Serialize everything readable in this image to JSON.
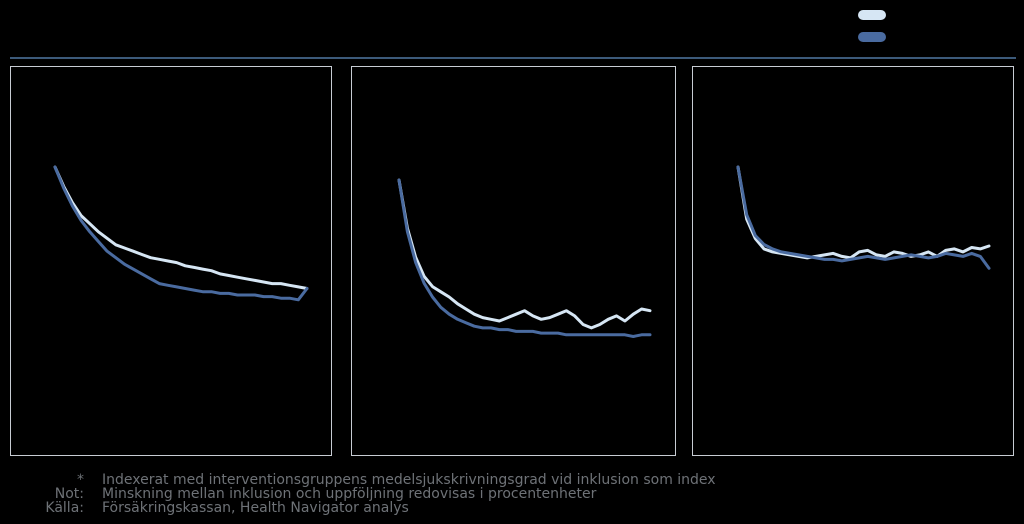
{
  "colors": {
    "background": "#000000",
    "frame": "#c7ccd3",
    "rule": "#3c5a7a",
    "footnote_text": "#6e7277"
  },
  "legend": {
    "entries": [
      {
        "label": "",
        "color": "#d6e6f4"
      },
      {
        "label": "",
        "color": "#4a6ba0"
      }
    ]
  },
  "chart_data": [
    {
      "type": "line",
      "title": "",
      "xlabel": "",
      "ylabel": "",
      "grid": false,
      "ylim": [
        0,
        100
      ],
      "series": [
        {
          "color": "#d6e6f4",
          "values": [
            100,
            88,
            78,
            70,
            65,
            60,
            56,
            52,
            50,
            48,
            46,
            44,
            43,
            42,
            41,
            39,
            38,
            37,
            36,
            34,
            33,
            32,
            31,
            30,
            29,
            28,
            28,
            27,
            26,
            25
          ]
        },
        {
          "color": "#4a6ba0",
          "values": [
            100,
            87,
            76,
            67,
            60,
            54,
            48,
            44,
            40,
            37,
            34,
            31,
            28,
            27,
            26,
            25,
            24,
            23,
            23,
            22,
            22,
            21,
            21,
            21,
            20,
            20,
            19,
            19,
            18,
            25
          ]
        }
      ]
    },
    {
      "type": "line",
      "title": "",
      "xlabel": "",
      "ylabel": "",
      "grid": false,
      "ylim": [
        0,
        100
      ],
      "series": [
        {
          "color": "#d6e6f4",
          "values": [
            100,
            72,
            55,
            44,
            38,
            35,
            32,
            28,
            25,
            22,
            20,
            19,
            18,
            20,
            22,
            24,
            21,
            19,
            20,
            22,
            24,
            21,
            16,
            14,
            16,
            19,
            21,
            18,
            22,
            25,
            24
          ]
        },
        {
          "color": "#4a6ba0",
          "values": [
            100,
            70,
            52,
            40,
            32,
            26,
            22,
            19,
            17,
            15,
            14,
            14,
            13,
            13,
            12,
            12,
            12,
            11,
            11,
            11,
            10,
            10,
            10,
            10,
            10,
            10,
            10,
            10,
            9,
            10,
            10
          ]
        }
      ]
    },
    {
      "type": "line",
      "title": "",
      "xlabel": "",
      "ylabel": "",
      "grid": false,
      "ylim": [
        0,
        100
      ],
      "series": [
        {
          "color": "#d6e6f4",
          "values": [
            100,
            65,
            52,
            45,
            43,
            42,
            41,
            40,
            39,
            40,
            41,
            42,
            40,
            39,
            43,
            44,
            41,
            40,
            43,
            42,
            40,
            41,
            43,
            40,
            44,
            45,
            43,
            46,
            45,
            47
          ]
        },
        {
          "color": "#4a6ba0",
          "values": [
            100,
            68,
            54,
            48,
            45,
            43,
            42,
            41,
            40,
            39,
            38,
            38,
            37,
            38,
            39,
            40,
            39,
            38,
            39,
            40,
            41,
            40,
            39,
            40,
            42,
            41,
            40,
            42,
            40,
            32
          ]
        }
      ]
    }
  ],
  "footnotes": [
    {
      "key": "*",
      "text": "Indexerat med interventionsgruppens medelsjukskrivningsgrad vid inklusion som index"
    },
    {
      "key": "Not:",
      "text": "Minskning mellan inklusion och uppföljning redovisas i procentenheter"
    },
    {
      "key": "Källa:",
      "text": "Försäkringskassan, Health Navigator analys"
    }
  ]
}
